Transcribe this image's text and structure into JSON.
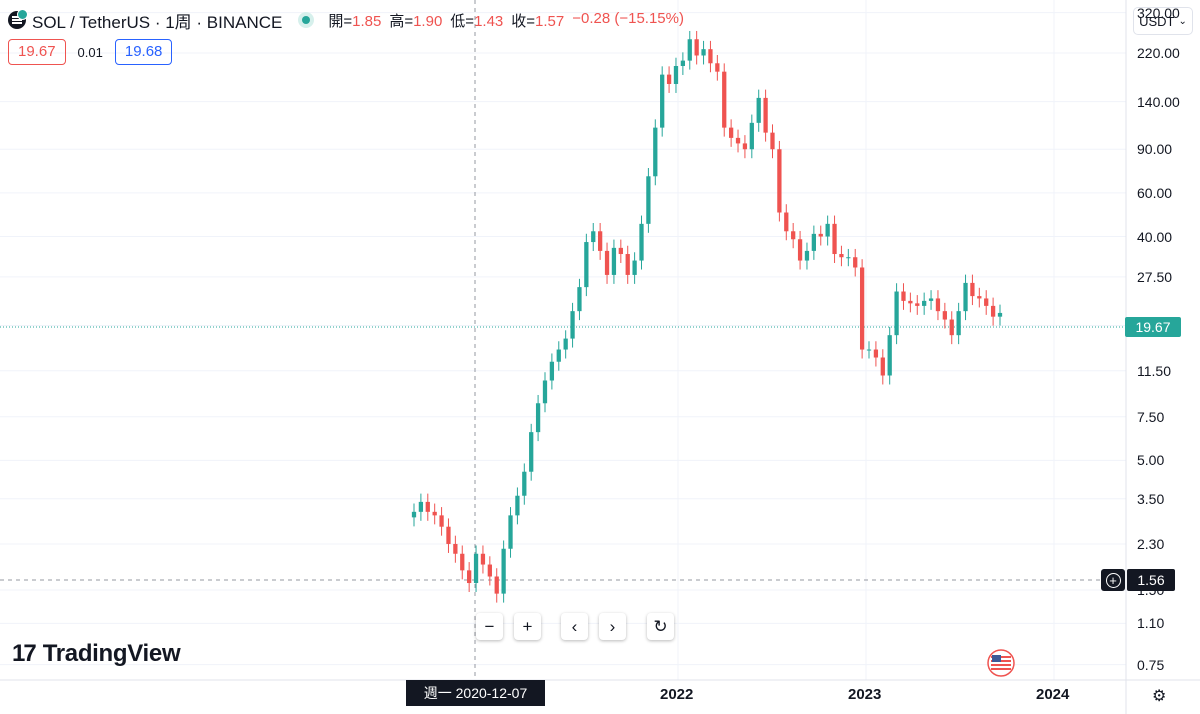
{
  "header": {
    "symbol": "SOL / TetherUS · 1周 · BINANCE",
    "ohlc": [
      {
        "label": "開=",
        "value": "1.85"
      },
      {
        "label": "高=",
        "value": "1.90"
      },
      {
        "label": "低=",
        "value": "1.43"
      },
      {
        "label": "收=",
        "value": "1.57"
      },
      {
        "label": "",
        "value": "−0.28 (−15.15%)"
      }
    ],
    "sell_price": "19.67",
    "spread": "0.01",
    "buy_price": "19.68",
    "currency": "USDT"
  },
  "colors": {
    "up": "#26a69a",
    "down": "#ef5350",
    "grid": "#f0f3fa",
    "crosshair": "#9598a1"
  },
  "chart_data": {
    "type": "candlestick",
    "title": "SOL / TetherUS · 1周 · BINANCE",
    "y_scale": "log",
    "ylim": [
      0.65,
      360
    ],
    "y_ticks": [
      "320.00",
      "220.00",
      "140.00",
      "90.00",
      "60.00",
      "40.00",
      "27.50",
      "17.50",
      "11.50",
      "7.50",
      "5.00",
      "3.50",
      "2.30",
      "1.50",
      "1.10",
      "0.75"
    ],
    "x_ticks": [
      "2022",
      "2023",
      "2024"
    ],
    "last_price": "19.67",
    "crosshair_price": "1.56",
    "crosshair_date": "週一 2020-12-07",
    "series": [
      {
        "name": "SOL/USDT",
        "close": [
          3.1,
          3.4,
          3.1,
          3.0,
          2.7,
          2.3,
          2.1,
          1.8,
          1.6,
          2.1,
          1.9,
          1.7,
          1.45,
          2.2,
          3.0,
          3.6,
          4.5,
          6.5,
          8.5,
          10.5,
          12.5,
          14.0,
          15.5,
          20.0,
          25.0,
          38.0,
          42.0,
          35.0,
          28.0,
          36.0,
          34.0,
          28.0,
          32.0,
          45.0,
          70.0,
          110.0,
          180.0,
          165.0,
          195.0,
          205.0,
          250.0,
          215.0,
          228.0,
          200.0,
          185.0,
          110.0,
          100.0,
          95.0,
          90.0,
          115.0,
          145.0,
          105.0,
          90.0,
          50.0,
          42.0,
          39.0,
          32.0,
          35.0,
          41.0,
          40.0,
          45.0,
          34.0,
          33.0,
          33.0,
          30.0,
          14.0,
          14.0,
          13.0,
          11.0,
          16.0,
          24.0,
          22.0,
          21.5,
          21.0,
          22.0,
          22.5,
          20.0,
          18.5,
          16.0,
          20.0,
          26.0,
          23.0,
          22.5,
          21.0,
          19.0,
          19.67
        ]
      }
    ]
  }
}
